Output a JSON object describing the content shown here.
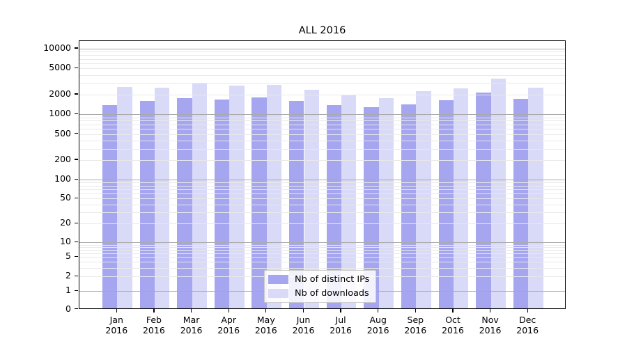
{
  "title": "ALL 2016",
  "colors": {
    "distinct_ips_bar": "#a5a5f0",
    "downloads_bar": "#d9d9f8",
    "grid_minor": "#e9e9e9",
    "grid_major": "#aaaaaa"
  },
  "legend": {
    "items": [
      {
        "label": "Nb of distinct IPs",
        "color": "#a5a5f0"
      },
      {
        "label": "Nb of downloads",
        "color": "#d9d9f8"
      }
    ]
  },
  "y_axis": {
    "tick_labels": [
      "10000",
      "5000",
      "2000",
      "1000",
      "500",
      "200",
      "100",
      "50",
      "20",
      "10",
      "5",
      "2",
      "1",
      "0"
    ]
  },
  "x_axis": {
    "tick_labels_line1": [
      "Jan",
      "Feb",
      "Mar",
      "Apr",
      "May",
      "Jun",
      "Jul",
      "Aug",
      "Sep",
      "Oct",
      "Nov",
      "Dec"
    ],
    "tick_labels_line2": [
      "2016",
      "2016",
      "2016",
      "2016",
      "2016",
      "2016",
      "2016",
      "2016",
      "2016",
      "2016",
      "2016",
      "2016"
    ]
  },
  "chart_data": {
    "type": "bar",
    "title": "ALL 2016",
    "categories": [
      "Jan 2016",
      "Feb 2016",
      "Mar 2016",
      "Apr 2016",
      "May 2016",
      "Jun 2016",
      "Jul 2016",
      "Aug 2016",
      "Sep 2016",
      "Oct 2016",
      "Nov 2016",
      "Dec 2016"
    ],
    "series": [
      {
        "name": "Nb of distinct IPs",
        "color": "#a5a5f0",
        "values": [
          1330,
          1520,
          1670,
          1590,
          1710,
          1530,
          1310,
          1230,
          1360,
          1560,
          2040,
          1630
        ]
      },
      {
        "name": "Nb of downloads",
        "color": "#d9d9f8",
        "values": [
          2500,
          2430,
          2810,
          2620,
          2700,
          2250,
          1840,
          1680,
          2150,
          2360,
          3320,
          2450
        ]
      }
    ],
    "yscale": "symlog",
    "y_ticks": [
      10000,
      5000,
      2000,
      1000,
      500,
      200,
      100,
      50,
      20,
      10,
      5,
      2,
      1,
      0
    ],
    "ylim": [
      0,
      13000
    ],
    "grid": true,
    "legend_position": "lower center"
  }
}
